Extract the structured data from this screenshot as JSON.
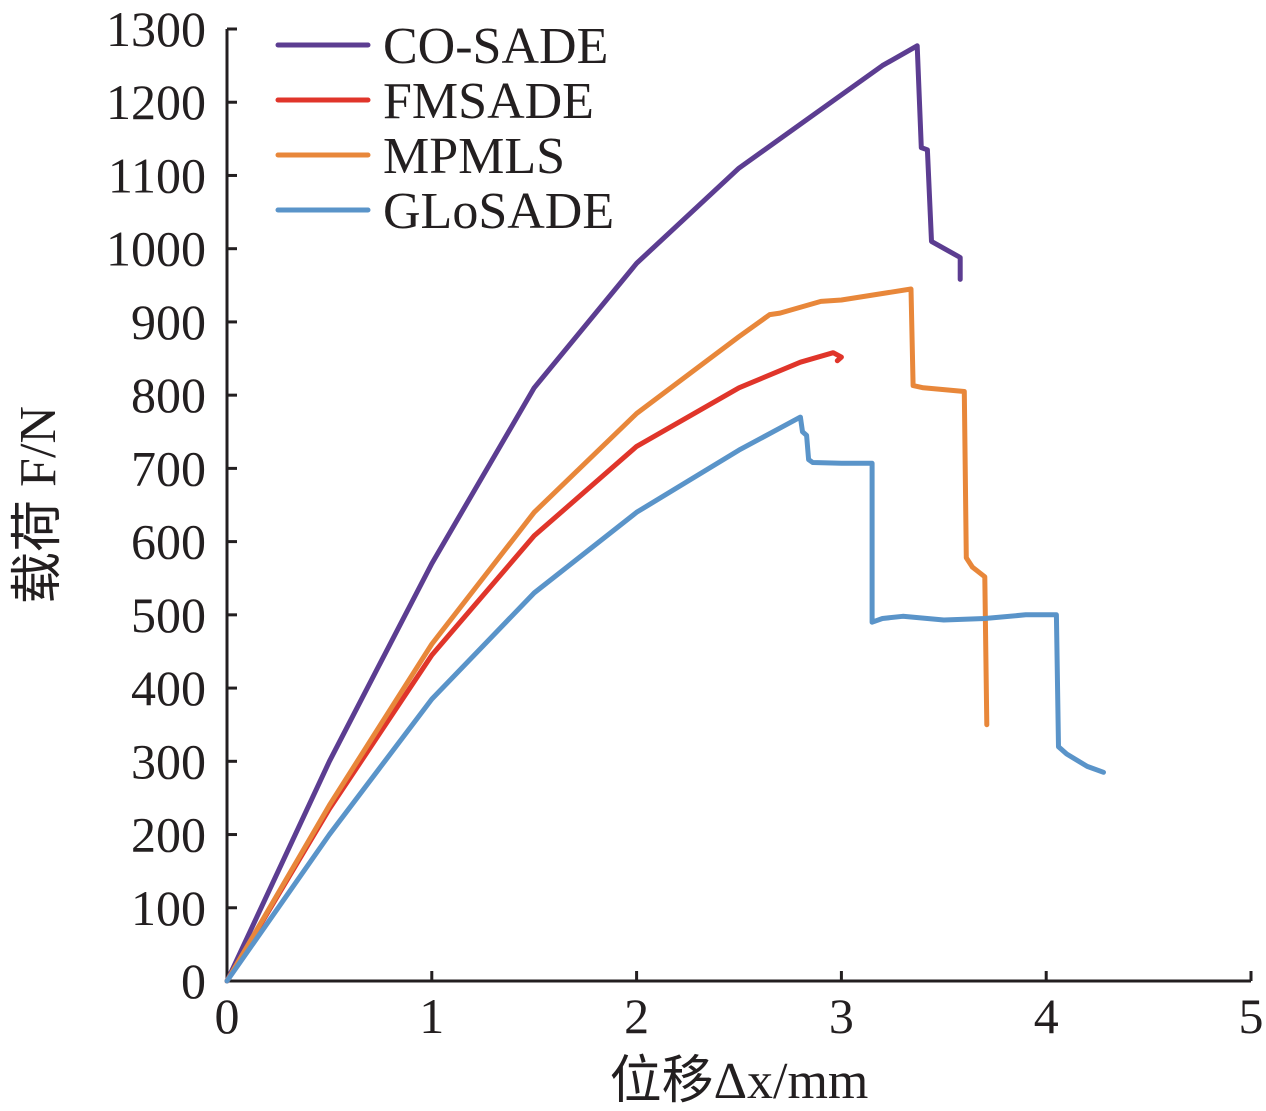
{
  "chart_data": {
    "type": "line",
    "title": "",
    "xlabel": "位移Δx/mm",
    "ylabel": "载荷 F/N",
    "xlim": [
      0,
      5
    ],
    "ylim": [
      0,
      1300
    ],
    "xticks": [
      0,
      1,
      2,
      3,
      4,
      5
    ],
    "yticks": [
      0,
      100,
      200,
      300,
      400,
      500,
      600,
      700,
      800,
      900,
      1000,
      1100,
      1200,
      1300
    ],
    "legend_position": "top-left",
    "grid": false,
    "series": [
      {
        "name": "CO-SADE",
        "color": "#5c3d91",
        "x": [
          0,
          0.5,
          1.0,
          1.5,
          2.0,
          2.5,
          3.0,
          3.2,
          3.37,
          3.39,
          3.42,
          3.44,
          3.58,
          3.58
        ],
        "y": [
          0,
          300,
          570,
          810,
          980,
          1110,
          1210,
          1250,
          1277,
          1138,
          1135,
          1010,
          988,
          958
        ]
      },
      {
        "name": "FMSADE",
        "color": "#e0352a",
        "x": [
          0,
          0.5,
          1.0,
          1.5,
          2.0,
          2.5,
          2.8,
          2.96,
          3.0,
          2.98
        ],
        "y": [
          0,
          235,
          445,
          608,
          730,
          810,
          845,
          858,
          852,
          847
        ]
      },
      {
        "name": "MPMLS",
        "color": "#e8873a",
        "x": [
          0,
          0.5,
          1.0,
          1.5,
          2.0,
          2.5,
          2.65,
          2.7,
          2.9,
          3.0,
          3.34,
          3.35,
          3.4,
          3.6,
          3.61,
          3.64,
          3.7,
          3.71
        ],
        "y": [
          0,
          240,
          460,
          640,
          775,
          880,
          910,
          912,
          928,
          930,
          945,
          813,
          810,
          805,
          578,
          565,
          552,
          350
        ]
      },
      {
        "name": "GLoSADE",
        "color": "#5a94c9",
        "x": [
          0,
          0.5,
          1.0,
          1.5,
          2.0,
          2.5,
          2.7,
          2.8,
          2.81,
          2.83,
          2.84,
          2.86,
          3.0,
          3.15,
          3.15,
          3.2,
          3.3,
          3.5,
          3.7,
          3.9,
          4.0,
          4.05,
          4.06,
          4.1,
          4.2,
          4.28
        ],
        "y": [
          0,
          200,
          385,
          530,
          640,
          725,
          755,
          770,
          750,
          745,
          712,
          708,
          707,
          707,
          490,
          495,
          498,
          493,
          495,
          500,
          500,
          500,
          320,
          310,
          293,
          285
        ]
      }
    ]
  }
}
